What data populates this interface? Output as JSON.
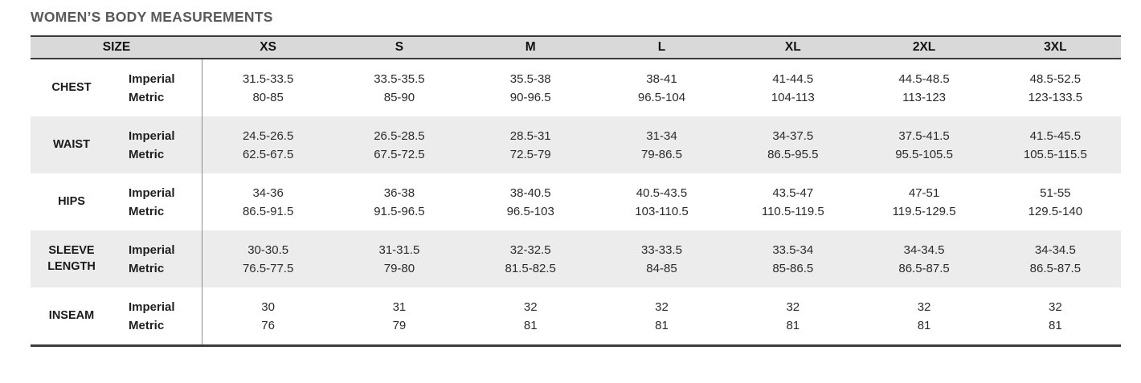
{
  "title": "WOMEN’S BODY MEASUREMENTS",
  "colors": {
    "header_bg": "#d9d9d9",
    "stripe_bg": "#ececec",
    "border_dark": "#3b3b3b",
    "divider_gray": "#8c8c8c",
    "title_color": "#595959"
  },
  "table": {
    "size_header": "SIZE",
    "unit_labels": [
      "Imperial",
      "Metric"
    ],
    "columns": [
      "XS",
      "S",
      "M",
      "L",
      "XL",
      "2XL",
      "3XL"
    ],
    "rows": [
      {
        "label": "CHEST",
        "imperial": [
          "31.5-33.5",
          "33.5-35.5",
          "35.5-38",
          "38-41",
          "41-44.5",
          "44.5-48.5",
          "48.5-52.5"
        ],
        "metric": [
          "80-85",
          "85-90",
          "90-96.5",
          "96.5-104",
          "104-113",
          "113-123",
          "123-133.5"
        ]
      },
      {
        "label": "WAIST",
        "imperial": [
          "24.5-26.5",
          "26.5-28.5",
          "28.5-31",
          "31-34",
          "34-37.5",
          "37.5-41.5",
          "41.5-45.5"
        ],
        "metric": [
          "62.5-67.5",
          "67.5-72.5",
          "72.5-79",
          "79-86.5",
          "86.5-95.5",
          "95.5-105.5",
          "105.5-115.5"
        ]
      },
      {
        "label": "HIPS",
        "imperial": [
          "34-36",
          "36-38",
          "38-40.5",
          "40.5-43.5",
          "43.5-47",
          "47-51",
          "51-55"
        ],
        "metric": [
          "86.5-91.5",
          "91.5-96.5",
          "96.5-103",
          "103-110.5",
          "110.5-119.5",
          "119.5-129.5",
          "129.5-140"
        ]
      },
      {
        "label": "SLEEVE LENGTH",
        "imperial": [
          "30-30.5",
          "31-31.5",
          "32-32.5",
          "33-33.5",
          "33.5-34",
          "34-34.5",
          "34-34.5"
        ],
        "metric": [
          "76.5-77.5",
          "79-80",
          "81.5-82.5",
          "84-85",
          "85-86.5",
          "86.5-87.5",
          "86.5-87.5"
        ]
      },
      {
        "label": "INSEAM",
        "imperial": [
          "30",
          "31",
          "32",
          "32",
          "32",
          "32",
          "32"
        ],
        "metric": [
          "76",
          "79",
          "81",
          "81",
          "81",
          "81",
          "81"
        ]
      }
    ]
  }
}
